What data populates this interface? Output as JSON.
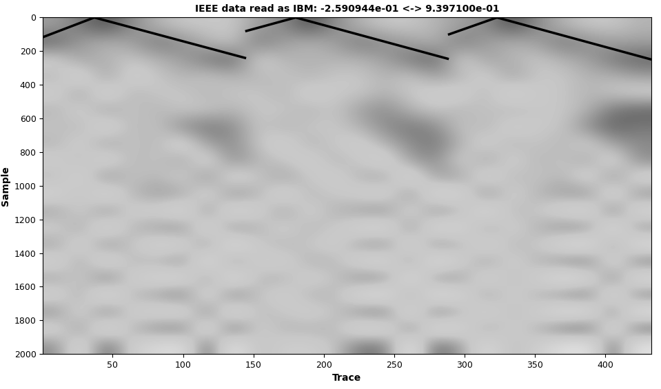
{
  "chart_data": {
    "type": "heatmap",
    "title": "IEEE data read as IBM: -2.590944e-01 <-> 9.397100e-01",
    "x_label": "Trace",
    "y_label": "Sample",
    "xlim": [
      0.5,
      432.5
    ],
    "ylim": [
      2000,
      0
    ],
    "xticks": [
      50,
      100,
      150,
      200,
      250,
      300,
      350,
      400
    ],
    "yticks": [
      0,
      200,
      400,
      600,
      800,
      1000,
      1200,
      1400,
      1600,
      1800,
      2000
    ],
    "color_range": [
      -1,
      1
    ],
    "cells": [
      [
        0.2,
        0.4,
        0.6,
        0.3,
        0.1,
        0,
        0,
        0,
        0.2,
        0.3,
        0.6,
        0.3,
        0.1,
        0,
        0,
        0.1,
        0.2,
        0.3,
        0.6,
        0.3,
        0.1,
        0,
        0,
        0.1
      ],
      [
        0.5,
        0.2,
        0.1,
        0.2,
        0.4,
        0.3,
        0.1,
        0,
        0.4,
        0.2,
        0.1,
        0.2,
        0.4,
        0.3,
        0.2,
        0.1,
        0.4,
        0.2,
        0.1,
        0.2,
        0.4,
        0.3,
        0.2,
        0.2
      ],
      [
        -0.1,
        0.2,
        0.1,
        0,
        0.1,
        0.2,
        0.4,
        0.5,
        -0.1,
        0.1,
        0.1,
        0.1,
        0.1,
        0.2,
        0.4,
        0.5,
        -0.1,
        0.2,
        0.1,
        0,
        0.1,
        0.2,
        0.4,
        0.5
      ],
      [
        0.1,
        -0.2,
        0.2,
        -0.1,
        0,
        0.1,
        0,
        0.1,
        0.1,
        0,
        0.1,
        0,
        0,
        0.1,
        0,
        0.2,
        0.1,
        -0.1,
        0.2,
        0,
        0,
        0.1,
        0.1,
        0.2
      ],
      [
        -0.1,
        0.2,
        -0.2,
        0.1,
        0,
        0,
        0.1,
        0,
        0,
        0.1,
        -0.1,
        0,
        0,
        0.1,
        0,
        -0.1,
        -0.1,
        0.1,
        -0.2,
        0,
        0,
        0.1,
        0,
        -0.1
      ],
      [
        0.1,
        -0.1,
        0.2,
        0,
        0.1,
        0,
        0,
        0.1,
        0,
        0,
        0.1,
        0,
        0.2,
        0.3,
        0.1,
        0,
        0.1,
        0,
        0.1,
        0,
        0,
        0.1,
        0.4,
        0.5
      ],
      [
        0,
        0.1,
        -0.2,
        0.1,
        0,
        0.3,
        0.4,
        0.3,
        0,
        0.1,
        0,
        0,
        0.1,
        0.3,
        0.4,
        0.3,
        0,
        0.1,
        -0.1,
        0,
        0,
        0.3,
        0.5,
        0.4
      ],
      [
        0.1,
        -0.1,
        0.2,
        0,
        0.1,
        -0.2,
        0.2,
        0.3,
        0,
        -0.1,
        0.1,
        0,
        -0.1,
        0.1,
        0.3,
        0.4,
        0.1,
        -0.1,
        0.1,
        0,
        0.1,
        -0.1,
        0.2,
        0.3
      ],
      [
        -0.1,
        0.1,
        -0.2,
        0.1,
        0,
        0.2,
        -0.2,
        0.3,
        0.1,
        0,
        -0.1,
        0.1,
        0,
        -0.2,
        0.2,
        0.3,
        -0.1,
        0.2,
        -0.1,
        0.1,
        0,
        0.2,
        -0.2,
        0.3
      ],
      [
        0.1,
        -0.2,
        0.3,
        0,
        0.1,
        -0.1,
        0.3,
        -0.2,
        0,
        0.2,
        0,
        -0.1,
        0.1,
        0.2,
        -0.3,
        0.2,
        0.2,
        -0.2,
        0.1,
        0,
        0.1,
        -0.2,
        0.3,
        -0.2
      ],
      [
        -0.2,
        0.1,
        -0.3,
        0.1,
        0.2,
        0.2,
        -0.2,
        0.3,
        0.1,
        -0.2,
        0.1,
        0,
        -0.1,
        -0.2,
        0.3,
        -0.3,
        -0.2,
        0.3,
        -0.1,
        0.1,
        0.2,
        0.3,
        -0.3,
        0.3
      ],
      [
        0.2,
        -0.1,
        0.3,
        -0.1,
        -0.1,
        -0.3,
        0.3,
        -0.3,
        -0.1,
        0.2,
        -0.1,
        0.1,
        0.2,
        0.3,
        -0.2,
        0.3,
        0.1,
        -0.3,
        0.1,
        0,
        -0.2,
        -0.3,
        0.4,
        -0.3
      ],
      [
        -0.1,
        0.2,
        -0.3,
        0.1,
        0.2,
        0.3,
        -0.3,
        0.3,
        0.1,
        -0.1,
        0.1,
        0,
        -0.2,
        -0.3,
        0.3,
        -0.3,
        -0.2,
        0.2,
        -0.1,
        0.1,
        0.3,
        0.3,
        -0.4,
        0.3
      ],
      [
        0.2,
        -0.2,
        0.3,
        0,
        -0.2,
        -0.2,
        0.3,
        -0.4,
        0,
        0.1,
        0,
        -0.1,
        0.2,
        0.3,
        -0.3,
        0.3,
        0.1,
        -0.2,
        0.1,
        0,
        -0.3,
        -0.4,
        0.3,
        -0.4
      ],
      [
        -0.2,
        0.2,
        -0.3,
        0.1,
        0.1,
        0.3,
        -0.4,
        0.3,
        -0.1,
        -0.1,
        0.1,
        0.1,
        -0.2,
        -0.3,
        0.3,
        -0.4,
        -0.1,
        0.2,
        -0.1,
        0.1,
        0.3,
        0.4,
        -0.3,
        0.4
      ],
      [
        0.2,
        -0.1,
        0.4,
        -0.1,
        -0.2,
        -0.3,
        0.3,
        -0.4,
        0.1,
        0.1,
        -0.1,
        0,
        0.3,
        0.3,
        -0.4,
        0.3,
        0.2,
        -0.2,
        0.1,
        -0.1,
        -0.4,
        -0.3,
        0.4,
        -0.4
      ],
      [
        -0.2,
        0.2,
        -0.4,
        0.1,
        0.2,
        0.4,
        -0.3,
        0.4,
        0,
        -0.1,
        0.1,
        0.1,
        -0.3,
        -0.4,
        0.3,
        -0.4,
        -0.2,
        0.2,
        -0.1,
        0.1,
        0.3,
        0.4,
        -0.4,
        0.4
      ],
      [
        0.3,
        -0.2,
        0.4,
        -0.1,
        -0.2,
        -0.3,
        0.4,
        -0.4,
        0.1,
        0,
        -0.1,
        0,
        0.3,
        0.4,
        -0.4,
        0.4,
        0.1,
        -0.2,
        0.1,
        -0.1,
        -0.4,
        -0.4,
        0.4,
        -0.5
      ],
      [
        -0.2,
        0.3,
        -0.4,
        0.1,
        0.3,
        0.4,
        -0.4,
        0.5,
        -0.1,
        0.1,
        0.1,
        0.1,
        -0.3,
        -0.3,
        0.4,
        -0.4,
        -0.2,
        0.2,
        -0.1,
        0.1,
        0.4,
        0.5,
        -0.4,
        0.5
      ],
      [
        0.3,
        -0.3,
        0.5,
        -0.1,
        -0.3,
        -0.4,
        0.5,
        -0.5,
        0.1,
        -0.1,
        -0.1,
        0,
        0.4,
        0.4,
        -0.5,
        0.5,
        0.2,
        -0.3,
        0.1,
        -0.1,
        -0.4,
        -0.5,
        0.5,
        -0.5
      ]
    ],
    "series": [
      {
        "type": "line",
        "color": "#000000",
        "x": [
          1,
          37,
          144
        ],
        "values": [
          115,
          0,
          240
        ]
      },
      {
        "type": "line",
        "color": "#000000",
        "x": [
          145,
          180,
          288
        ],
        "values": [
          80,
          0,
          245
        ]
      },
      {
        "type": "line",
        "color": "#000000",
        "x": [
          289,
          323,
          432
        ],
        "values": [
          100,
          0,
          248
        ]
      }
    ]
  }
}
